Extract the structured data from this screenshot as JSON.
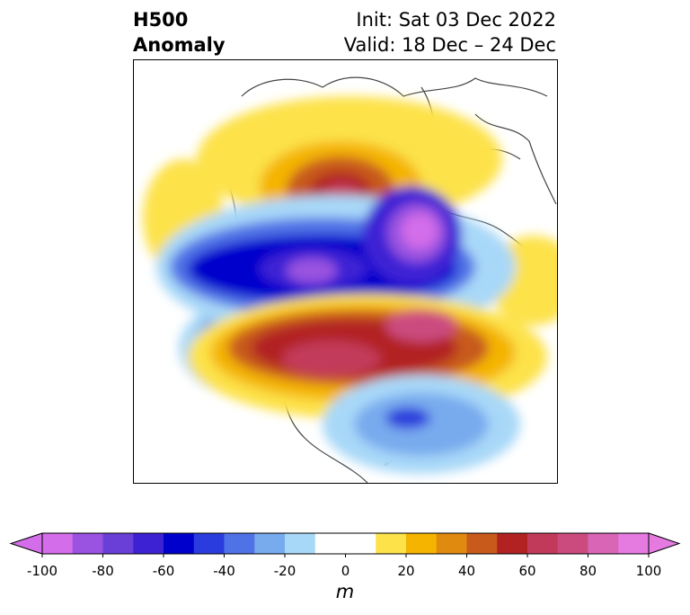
{
  "title": {
    "line1_left": "H500",
    "line2_left": "Anomaly",
    "line1_right": "Init: Sat 03 Dec 2022",
    "line2_right": "Valid: 18 Dec – 24 Dec"
  },
  "colorbar": {
    "unit": "m",
    "ticks": [
      "-100",
      "-80",
      "-60",
      "-40",
      "-20",
      "0",
      "20",
      "40",
      "60",
      "80",
      "100"
    ],
    "colors": [
      "#d46de9",
      "#9a52e0",
      "#6a3fd8",
      "#3d22d4",
      "#0000cc",
      "#2a3cdd",
      "#4f72e6",
      "#78aaee",
      "#a8d8f8",
      "#ffffff",
      "#ffffff",
      "#fde24a",
      "#f4b400",
      "#e08a10",
      "#c85a1c",
      "#b22222",
      "#c23a5a",
      "#cc4b7f",
      "#d865b5",
      "#e57ae0"
    ],
    "extend_low_color": "#d46de9",
    "extend_high_color": "#e57ae0"
  }
}
